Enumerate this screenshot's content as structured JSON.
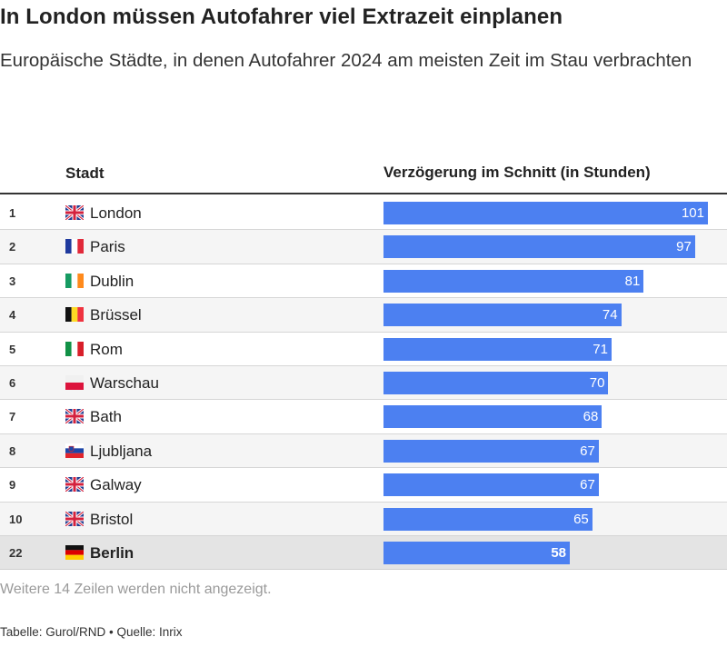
{
  "header": {
    "title": "In London müssen Autofahrer viel Extrazeit einplanen",
    "subtitle": "Europäische Städte, in denen Autofahrer 2024 am meisten Zeit im Stau verbrachten"
  },
  "table": {
    "col_city": "Stadt",
    "col_delay": "Verzögerung im Schnitt (in Stunden)",
    "notice": "Weitere 14 Zeilen werden nicht angezeigt.",
    "source": "Tabelle: Gurol/RND • Quelle: Inrix"
  },
  "colors": {
    "bar": "#4c80f1",
    "highlight_row": "#e4e4e4"
  },
  "chart_data": {
    "type": "table",
    "xlim": [
      0,
      101
    ],
    "rows": [
      {
        "rank": "1",
        "city": "London",
        "flag": "uk",
        "value": 101
      },
      {
        "rank": "2",
        "city": "Paris",
        "flag": "france",
        "value": 97
      },
      {
        "rank": "3",
        "city": "Dublin",
        "flag": "ireland",
        "value": 81
      },
      {
        "rank": "4",
        "city": "Brüssel",
        "flag": "belgium",
        "value": 74
      },
      {
        "rank": "5",
        "city": "Rom",
        "flag": "italy",
        "value": 71
      },
      {
        "rank": "6",
        "city": "Warschau",
        "flag": "poland",
        "value": 70
      },
      {
        "rank": "7",
        "city": "Bath",
        "flag": "uk",
        "value": 68
      },
      {
        "rank": "8",
        "city": "Ljubljana",
        "flag": "slovenia",
        "value": 67
      },
      {
        "rank": "9",
        "city": "Galway",
        "flag": "uk",
        "value": 67
      },
      {
        "rank": "10",
        "city": "Bristol",
        "flag": "uk",
        "value": 65
      },
      {
        "rank": "22",
        "city": "Berlin",
        "flag": "germany",
        "value": 58,
        "highlight": true
      }
    ]
  }
}
